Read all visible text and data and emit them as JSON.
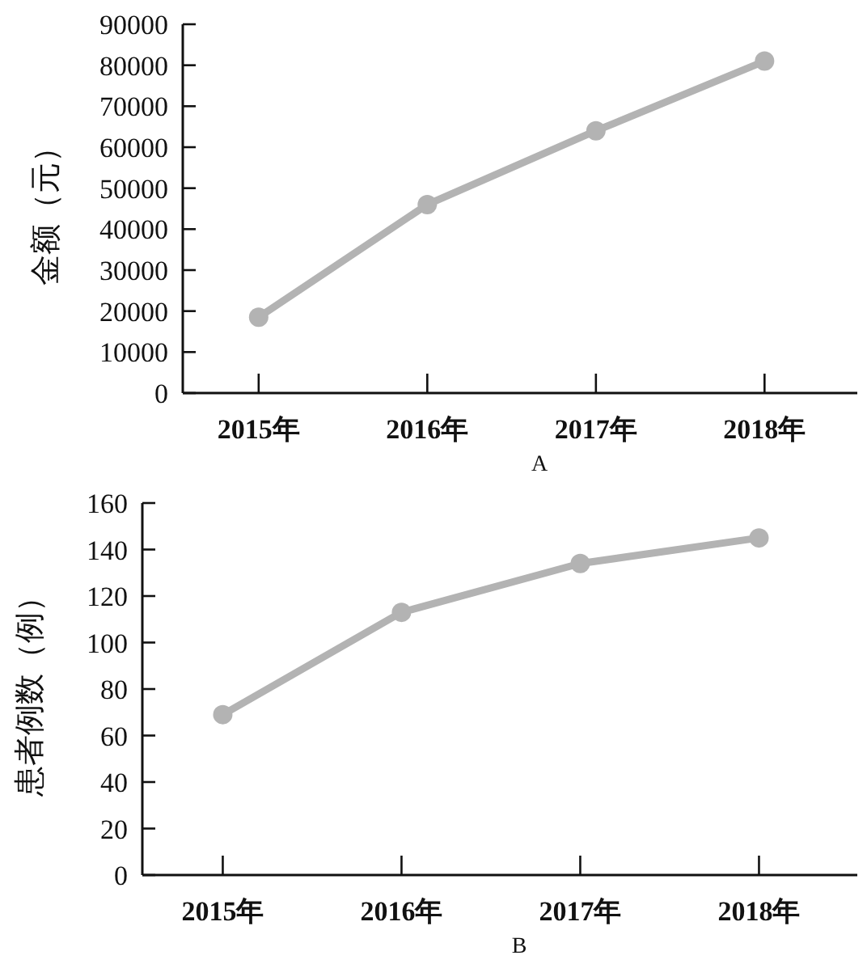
{
  "chart_data": [
    {
      "type": "line",
      "xlabel": "A",
      "ylabel": "金额（元）",
      "categories": [
        "2015年",
        "2016年",
        "2017年",
        "2018年"
      ],
      "series": [
        {
          "color": "#b3b3b3",
          "values": [
            18500,
            46000,
            64000,
            81000
          ]
        }
      ],
      "ylim": [
        0,
        90000
      ],
      "yticks": [
        0,
        10000,
        20000,
        30000,
        40000,
        50000,
        60000,
        70000,
        80000,
        90000
      ],
      "marker": "circle"
    },
    {
      "type": "line",
      "xlabel": "B",
      "ylabel": "患者例数（例）",
      "categories": [
        "2015年",
        "2016年",
        "2017年",
        "2018年"
      ],
      "series": [
        {
          "color": "#b3b3b3",
          "values": [
            69,
            113,
            134,
            145
          ]
        }
      ],
      "ylim": [
        0,
        160
      ],
      "yticks": [
        0,
        20,
        40,
        60,
        80,
        100,
        120,
        140,
        160
      ],
      "marker": "circle"
    }
  ]
}
